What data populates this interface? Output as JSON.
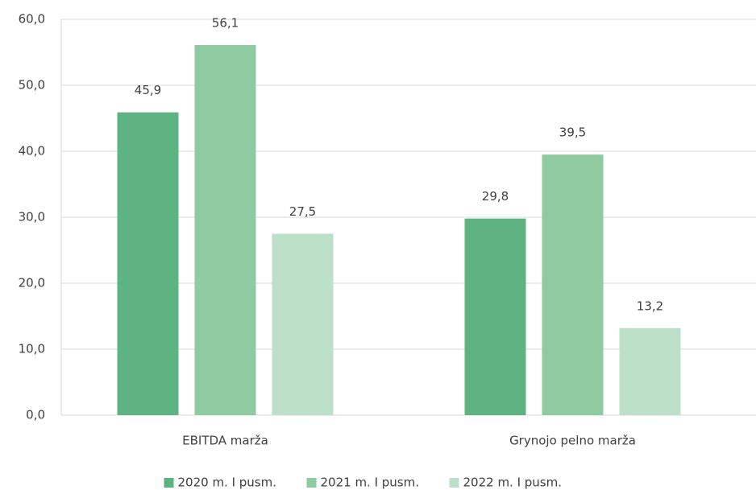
{
  "chart_data": {
    "type": "bar",
    "categories": [
      "EBITDA marža",
      "Grynojo pelno marža"
    ],
    "series": [
      {
        "name": "2020 m. I pusm.",
        "color": "#5fb383",
        "values": [
          45.9,
          29.8
        ],
        "value_labels": [
          "45,9",
          "29,8"
        ]
      },
      {
        "name": "2021 m. I pusm.",
        "color": "#8fcaa0",
        "values": [
          56.1,
          39.5
        ],
        "value_labels": [
          "56,1",
          "39,5"
        ]
      },
      {
        "name": "2022 m. I pusm.",
        "color": "#bde0c8",
        "values": [
          27.5,
          13.2
        ],
        "value_labels": [
          "27,5",
          "13,2"
        ]
      }
    ],
    "ylim": [
      0,
      60
    ],
    "yticks": [
      {
        "value": 0,
        "label": "0,0"
      },
      {
        "value": 10,
        "label": "10,0"
      },
      {
        "value": 20,
        "label": "20,0"
      },
      {
        "value": 30,
        "label": "30,0"
      },
      {
        "value": 40,
        "label": "40,0"
      },
      {
        "value": 50,
        "label": "50,0"
      },
      {
        "value": 60,
        "label": "60,0"
      }
    ],
    "grid": true,
    "legend": "bottom"
  }
}
